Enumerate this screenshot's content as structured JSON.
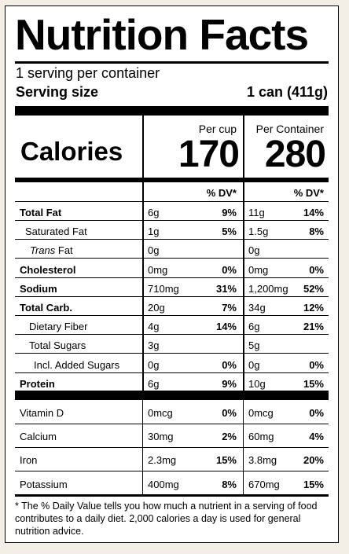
{
  "title": "Nutrition Facts",
  "servings_per_container": "1 serving per container",
  "serving_size_label": "Serving size",
  "serving_size_value": "1 can (411g)",
  "calories_label": "Calories",
  "columns": [
    {
      "header": "Per cup",
      "calories": "170",
      "dv_header": "% DV*"
    },
    {
      "header": "Per Container",
      "calories": "280",
      "dv_header": "% DV*"
    }
  ],
  "nutrients": [
    {
      "name": "Total Fat",
      "bold": true,
      "c1_amt": "6g",
      "c1_dv": "9%",
      "c2_amt": "11g",
      "c2_dv": "14%"
    },
    {
      "name": "Saturated Fat",
      "bold": false,
      "c1_amt": "1g",
      "c1_dv": "5%",
      "c2_amt": "1.5g",
      "c2_dv": "8%"
    },
    {
      "name_italic": "Trans",
      "name": " Fat",
      "bold": false,
      "c1_amt": "0g",
      "c1_dv": "",
      "c2_amt": "0g",
      "c2_dv": ""
    },
    {
      "name": "Cholesterol",
      "bold": true,
      "c1_amt": "0mg",
      "c1_dv": "0%",
      "c2_amt": "0mg",
      "c2_dv": "0%"
    },
    {
      "name": "Sodium",
      "bold": true,
      "c1_amt": "710mg",
      "c1_dv": "31%",
      "c2_amt": "1,200mg",
      "c2_dv": "52%"
    },
    {
      "name": "Total Carb.",
      "bold": true,
      "c1_amt": "20g",
      "c1_dv": "7%",
      "c2_amt": "34g",
      "c2_dv": "12%"
    },
    {
      "name": "Dietary Fiber",
      "bold": false,
      "c1_amt": "4g",
      "c1_dv": "14%",
      "c2_amt": "6g",
      "c2_dv": "21%"
    },
    {
      "name": "Total Sugars",
      "bold": false,
      "c1_amt": "3g",
      "c1_dv": "",
      "c2_amt": "5g",
      "c2_dv": ""
    },
    {
      "name": "Incl. Added Sugars",
      "bold": false,
      "c1_amt": "0g",
      "c1_dv": "0%",
      "c2_amt": "0g",
      "c2_dv": "0%"
    },
    {
      "name": "Protein",
      "bold": true,
      "c1_amt": "6g",
      "c1_dv": "9%",
      "c2_amt": "10g",
      "c2_dv": "15%"
    }
  ],
  "vitamins": [
    {
      "name": "Vitamin D",
      "c1_amt": "0mcg",
      "c1_dv": "0%",
      "c2_amt": "0mcg",
      "c2_dv": "0%"
    },
    {
      "name": "Calcium",
      "c1_amt": "30mg",
      "c1_dv": "2%",
      "c2_amt": "60mg",
      "c2_dv": "4%"
    },
    {
      "name": "Iron",
      "c1_amt": "2.3mg",
      "c1_dv": "15%",
      "c2_amt": "3.8mg",
      "c2_dv": "20%"
    },
    {
      "name": "Potassium",
      "c1_amt": "400mg",
      "c1_dv": "8%",
      "c2_amt": "670mg",
      "c2_dv": "15%"
    }
  ],
  "footnote": "* The % Daily Value tells you how much a nutrient in a serving of food contributes to a daily diet. 2,000 calories a day is used for general nutrition advice."
}
